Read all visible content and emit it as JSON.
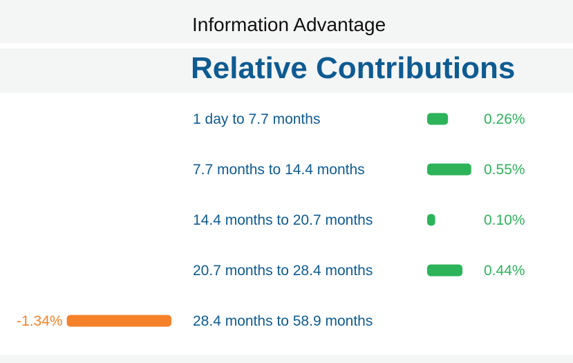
{
  "subtitle": "Information Advantage",
  "title": "Relative Contributions",
  "colors": {
    "positive": "#2db35a",
    "negative": "#f5822a",
    "label": "#0e5b92",
    "positive_text": "#2db35a",
    "negative_text": "#f5822a"
  },
  "chart_data": {
    "type": "bar",
    "orientation": "horizontal",
    "title": "Relative Contributions",
    "subtitle": "Information Advantage",
    "categories": [
      "1 day to 7.7 months",
      "7.7 months to 14.4 months",
      "14.4 months to 20.7 months",
      "20.7 months to 28.4 months",
      "28.4 months to 58.9 months"
    ],
    "values": [
      0.26,
      0.55,
      0.1,
      0.44,
      -1.34
    ],
    "value_labels": [
      "0.26%",
      "0.55%",
      "0.10%",
      "0.44%",
      "-1.34%"
    ],
    "unit": "%",
    "grid": false,
    "legend": "none"
  }
}
